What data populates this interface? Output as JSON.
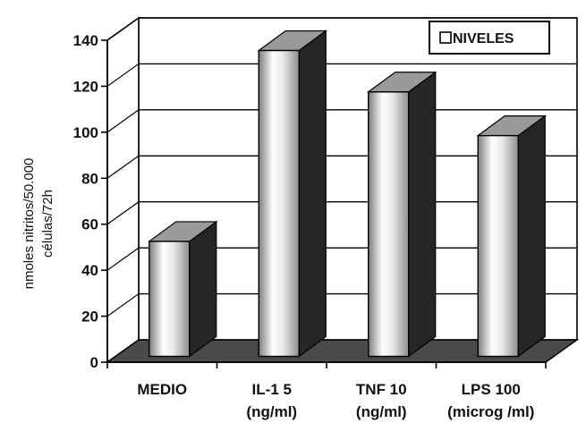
{
  "chart_data": {
    "type": "bar",
    "title": "",
    "categories": [
      [
        "MEDIO"
      ],
      [
        "IL-1 5",
        "(ng/ml)"
      ],
      [
        "TNF 10",
        "(ng/ml)"
      ],
      [
        "LPS 100",
        "(microg /ml)"
      ]
    ],
    "series": [
      {
        "name": "NIVELES",
        "values": [
          50,
          133,
          115,
          96
        ]
      }
    ],
    "ylabel": [
      "nmoles nitritos/50.000",
      "células/72h"
    ],
    "xlabel": "",
    "ylim": [
      0,
      140
    ],
    "yticks": [
      0,
      20,
      40,
      60,
      80,
      100,
      120,
      140
    ],
    "grid": true,
    "legend_position": "top-right",
    "style": "3d-column",
    "colors": {
      "bar_front_light": "#ffffff",
      "bar_front_dark": "#8a8a8a",
      "bar_side": "#262626",
      "bar_top": "#9a9a9a",
      "floor": "#4a4a4a",
      "grid": "#000000"
    }
  }
}
